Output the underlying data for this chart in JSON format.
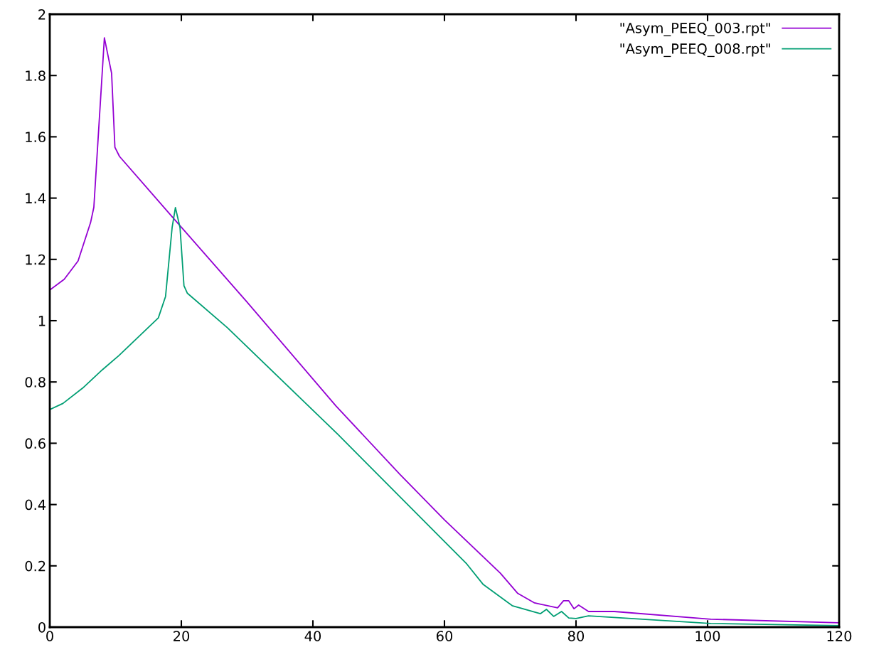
{
  "chart_data": {
    "type": "line",
    "xlim": [
      0,
      120
    ],
    "ylim": [
      0,
      2
    ],
    "xticks": [
      0,
      20,
      40,
      60,
      80,
      100,
      120
    ],
    "yticks": [
      0,
      0.2,
      0.4,
      0.6,
      0.8,
      1,
      1.2,
      1.4,
      1.6,
      1.8,
      2
    ],
    "grid": false,
    "legend": "top right",
    "line_style": "solid",
    "marker": "none",
    "series": [
      {
        "name": "\"Asym_PEEQ_003.rpt\"",
        "color": "#9400d3",
        "x": [
          0,
          2.2,
          4.3,
          6.2,
          6.7,
          8.3,
          9.4,
          9.9,
          10.6,
          19.1,
          29.9,
          43.5,
          53.2,
          60,
          68.5,
          71.1,
          73.7,
          77.2,
          78.1,
          78.9,
          79.7,
          80.4,
          81.9,
          85.8,
          100.5,
          120
        ],
        "values": [
          1.1,
          1.135,
          1.195,
          1.32,
          1.37,
          1.923,
          1.807,
          1.566,
          1.536,
          1.327,
          1.063,
          0.722,
          0.499,
          0.35,
          0.176,
          0.111,
          0.079,
          0.063,
          0.086,
          0.086,
          0.06,
          0.072,
          0.051,
          0.051,
          0.026,
          0.014
        ]
      },
      {
        "name": "\"Asym_PEEQ_008.rpt\"",
        "color": "#009e73",
        "x": [
          0,
          2,
          5,
          8,
          10.5,
          16.5,
          17.6,
          18.6,
          19.1,
          19.8,
          20.4,
          20.9,
          27,
          43.8,
          63.4,
          65.9,
          70.3,
          74.6,
          75.5,
          76.6,
          77.8,
          78.9,
          80,
          81.9,
          100.5,
          120
        ],
        "values": [
          0.71,
          0.73,
          0.78,
          0.84,
          0.886,
          1.009,
          1.079,
          1.304,
          1.369,
          1.304,
          1.114,
          1.09,
          0.977,
          0.629,
          0.206,
          0.139,
          0.07,
          0.044,
          0.058,
          0.035,
          0.051,
          0.03,
          0.028,
          0.037,
          0.012,
          0.005
        ]
      }
    ]
  }
}
